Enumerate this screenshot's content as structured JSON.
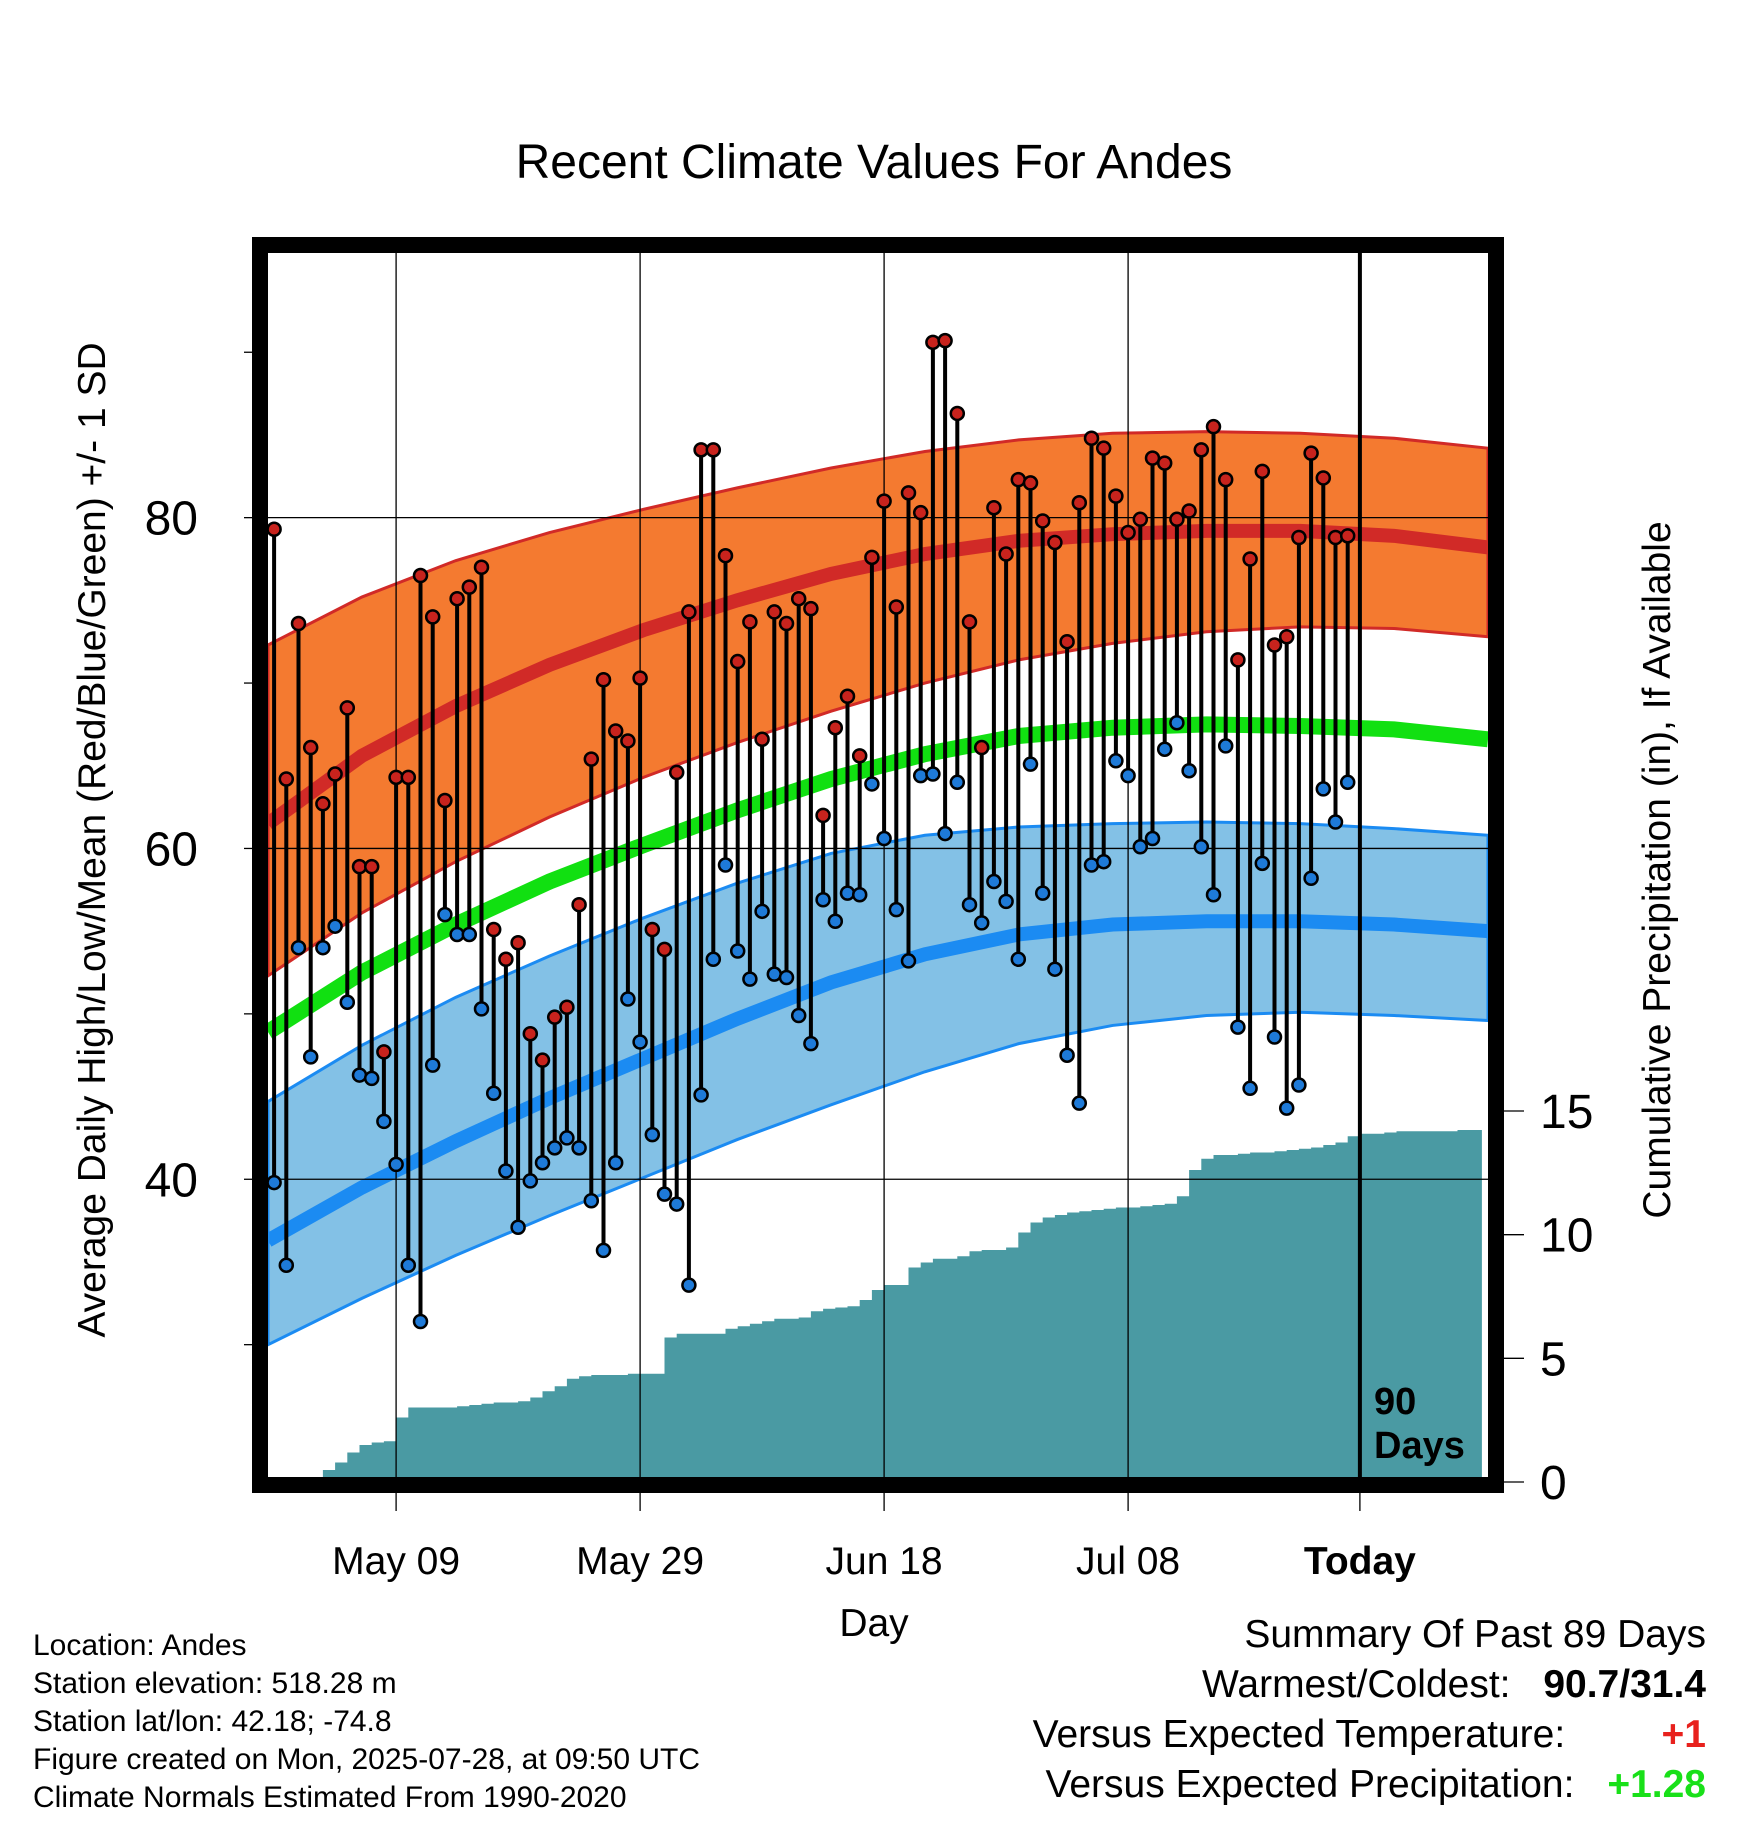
{
  "chart_data": {
    "type": "line",
    "title": "Recent Climate Values For Andes",
    "xlabel": "Day",
    "ylabel": "Average Daily High/Low/Mean (Red/Blue/Green) +/- 1 SD",
    "y2label": "Cumulative Precipitation (in), If Available",
    "x_tick_labels": [
      "May 09",
      "May 29",
      "Jun 18",
      "Jul 08",
      "Today"
    ],
    "y_ticks": [
      40,
      60,
      80
    ],
    "y2_ticks": [
      0,
      5,
      10,
      15
    ],
    "ylim": [
      22,
      96
    ],
    "y2lim": [
      0,
      38.5
    ],
    "xlim": [
      -10.5,
      89.5
    ],
    "today_index": 79,
    "today_note": "90 Days",
    "grid": true,
    "colors": {
      "high_band": "#f47a30",
      "high_line": "#d12a27",
      "low_band": "#83c1e6",
      "low_line": "#1b8bf2",
      "mean_line": "#11e011",
      "precip": "#4a9aa3",
      "high_dot": "#c8231d",
      "low_dot": "#1e7ad8"
    },
    "normals": {
      "high_mean": [
        61.5,
        65.6,
        68.6,
        71.1,
        73.2,
        75.0,
        76.6,
        77.8,
        78.6,
        79.0,
        79.2,
        79.2,
        78.9,
        78.2
      ],
      "high_upper": [
        72.3,
        75.2,
        77.4,
        79.1,
        80.5,
        81.8,
        83.0,
        84.0,
        84.7,
        85.1,
        85.2,
        85.1,
        84.8,
        84.2
      ],
      "high_lower": [
        52.3,
        56.1,
        59.2,
        61.9,
        64.3,
        66.4,
        68.3,
        70.0,
        71.4,
        72.4,
        73.1,
        73.4,
        73.3,
        72.8
      ],
      "low_mean": [
        36.3,
        39.5,
        42.3,
        44.9,
        47.3,
        49.7,
        51.9,
        53.6,
        54.8,
        55.4,
        55.6,
        55.6,
        55.4,
        55.0
      ],
      "low_upper": [
        44.7,
        48.1,
        51.0,
        53.5,
        55.8,
        57.9,
        59.7,
        60.8,
        61.3,
        61.5,
        61.6,
        61.5,
        61.2,
        60.8
      ],
      "low_lower": [
        30.0,
        32.8,
        35.4,
        37.8,
        40.1,
        42.4,
        44.5,
        46.5,
        48.2,
        49.3,
        49.9,
        50.1,
        49.9,
        49.6
      ],
      "mean": [
        48.9,
        52.5,
        55.4,
        58.0,
        60.2,
        62.3,
        64.2,
        65.7,
        66.8,
        67.3,
        67.5,
        67.4,
        67.2,
        66.6
      ]
    },
    "series": [
      {
        "name": "Daily High",
        "values": [
          79.3,
          64.2,
          73.6,
          66.1,
          62.7,
          64.5,
          68.5,
          58.9,
          58.9,
          47.7,
          64.3,
          64.3,
          76.5,
          74.0,
          62.9,
          75.1,
          75.8,
          77.0,
          55.1,
          53.3,
          54.3,
          48.8,
          47.2,
          49.8,
          50.4,
          56.6,
          65.4,
          70.2,
          67.1,
          66.5,
          70.3,
          55.1,
          53.9,
          64.6,
          74.3,
          84.1,
          84.1,
          77.7,
          71.3,
          73.7,
          66.6,
          74.3,
          73.6,
          75.1,
          74.5,
          62.0,
          67.3,
          69.2,
          65.6,
          77.6,
          81.0,
          74.6,
          81.5,
          80.3,
          90.6,
          90.7,
          86.3,
          73.7,
          66.1,
          80.6,
          77.8,
          82.3,
          82.1,
          79.8,
          78.5,
          72.5,
          80.9,
          84.8,
          84.2,
          81.3,
          79.1,
          79.9,
          83.6,
          83.3,
          79.9,
          80.4,
          84.1,
          85.5,
          82.3,
          71.4,
          77.5,
          82.8,
          72.3,
          72.8,
          78.8,
          83.9,
          82.4,
          78.8,
          78.9
        ]
      },
      {
        "name": "Daily Low",
        "values": [
          39.8,
          34.8,
          54.0,
          47.4,
          54.0,
          55.3,
          50.7,
          46.3,
          46.1,
          43.5,
          40.9,
          34.8,
          31.4,
          46.9,
          56.0,
          54.8,
          54.8,
          50.3,
          45.2,
          40.5,
          37.1,
          39.9,
          41.0,
          41.9,
          42.5,
          41.9,
          38.7,
          35.7,
          41.0,
          50.9,
          48.3,
          42.7,
          39.1,
          38.5,
          33.6,
          45.1,
          53.3,
          59.0,
          53.8,
          52.1,
          56.2,
          52.4,
          52.2,
          49.9,
          48.2,
          56.9,
          55.6,
          57.3,
          57.2,
          63.9,
          60.6,
          56.3,
          53.2,
          64.4,
          64.5,
          60.9,
          64.0,
          56.6,
          55.5,
          58.0,
          56.8,
          53.3,
          65.1,
          57.3,
          52.7,
          47.5,
          44.6,
          59.0,
          59.2,
          65.3,
          64.4,
          60.1,
          60.6,
          66.0,
          67.6,
          64.7,
          60.1,
          57.2,
          66.2,
          49.2,
          45.5,
          59.1,
          48.6,
          44.3,
          45.7,
          58.2,
          63.6,
          61.6,
          64.0
        ]
      },
      {
        "name": "Cumulative Precipitation",
        "values": [
          0,
          0,
          0,
          0,
          0,
          0.6,
          0.9,
          1.3,
          1.6,
          1.7,
          1.75,
          2.7,
          3.1,
          3.1,
          3.1,
          3.1,
          3.15,
          3.2,
          3.25,
          3.3,
          3.3,
          3.35,
          3.5,
          3.75,
          3.95,
          4.25,
          4.35,
          4.4,
          4.4,
          4.4,
          4.45,
          4.45,
          4.45,
          5.9,
          6.05,
          6.05,
          6.05,
          6.05,
          6.25,
          6.35,
          6.45,
          6.55,
          6.65,
          6.65,
          6.7,
          6.95,
          7.05,
          7.1,
          7.15,
          7.4,
          7.8,
          8.0,
          8.0,
          8.7,
          8.9,
          9.05,
          9.05,
          9.15,
          9.35,
          9.4,
          9.4,
          9.5,
          10.1,
          10.5,
          10.7,
          10.8,
          10.9,
          10.95,
          11.0,
          11.05,
          11.1,
          11.1,
          11.15,
          11.2,
          11.25,
          11.55,
          12.6,
          13.05,
          13.2,
          13.2,
          13.25,
          13.3,
          13.3,
          13.35,
          13.4,
          13.45,
          13.5,
          13.6,
          13.7,
          13.95,
          14.05,
          14.05,
          14.1,
          14.15,
          14.15,
          14.15,
          14.15,
          14.15,
          14.2,
          14.2
        ]
      }
    ]
  },
  "info": {
    "location": "Location: Andes",
    "elevation": "Station elevation: 518.28 m",
    "latlon": "Station lat/lon: 42.18; -74.8",
    "created": "Figure created on Mon, 2025-07-28, at 09:50 UTC",
    "normals": "Climate Normals Estimated From 1990-2020"
  },
  "summary": {
    "title": "Summary Of Past 89 Days",
    "warm_cold_label": "Warmest/Coldest:",
    "warm_cold_value": "90.7/31.4",
    "temp_label": "Versus Expected Temperature:",
    "temp_value": "+1",
    "temp_color": "#e8211d",
    "precip_label": "Versus Expected Precipitation:",
    "precip_value": "+1.28",
    "precip_color": "#19e019"
  }
}
